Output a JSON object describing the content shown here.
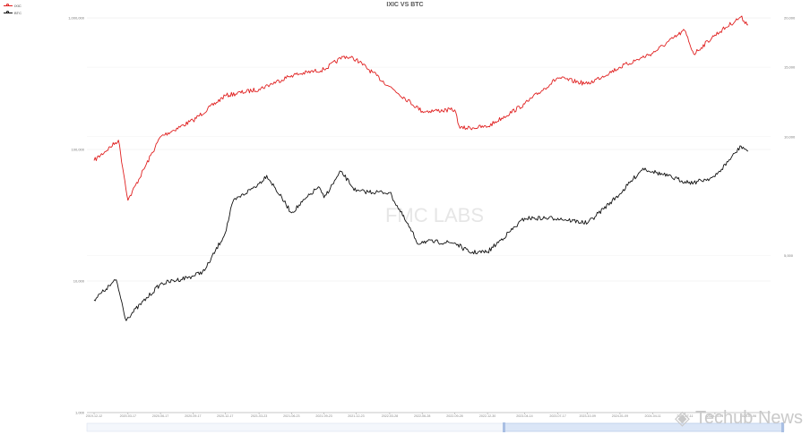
{
  "chart_data": {
    "type": "line",
    "title": "IXIC VS BTC",
    "legend_position": "top-left",
    "grid": true,
    "x_tick_labels": [
      "2019-12-12",
      "2020-03-17",
      "2020-06-17",
      "2020-09-17",
      "2020-12-17",
      "2021-03-23",
      "2021-06-23",
      "2021-09-23",
      "2021-12-23",
      "2022-03-28",
      "2022-06-28",
      "2022-09-28",
      "2022-12-30",
      "2023-04-14",
      "2023-07-17",
      "2023-10-09",
      "2024-01-09",
      "2024-04-11",
      "2024-07-11",
      "2024-10-04",
      "2025-01-06"
    ],
    "left_axis": {
      "scale": "log",
      "ylim": [
        1000,
        1000000
      ],
      "tick_labels": [
        "1,000",
        "10,000",
        "100,000",
        "1,000,000"
      ]
    },
    "right_axis": {
      "scale": "log",
      "ylim": [
        2000,
        20000
      ],
      "tick_labels": [
        "5,000",
        "10,000",
        "15,000",
        "20,000"
      ]
    },
    "series": [
      {
        "name": "IXIC",
        "color": "#e02020",
        "axis": "right",
        "x": [
          "2019-12-12",
          "2020-02-19",
          "2020-03-17",
          "2020-06-17",
          "2020-09-17",
          "2020-12-17",
          "2021-03-23",
          "2021-06-23",
          "2021-09-23",
          "2021-11-19",
          "2021-12-23",
          "2022-03-28",
          "2022-06-28",
          "2022-09-28",
          "2022-10-13",
          "2022-12-30",
          "2023-04-14",
          "2023-07-17",
          "2023-10-09",
          "2024-01-09",
          "2024-04-11",
          "2024-07-10",
          "2024-08-05",
          "2024-10-04",
          "2024-12-16",
          "2025-01-06"
        ],
        "values": [
          8700,
          9800,
          6900,
          10000,
          11000,
          12700,
          13200,
          14300,
          14800,
          16000,
          15700,
          13400,
          11600,
          11700,
          10500,
          10600,
          12100,
          14100,
          13600,
          15000,
          16300,
          18600,
          16200,
          18100,
          20100,
          19200
        ]
      },
      {
        "name": "BTC",
        "color": "#111111",
        "axis": "left",
        "x": [
          "2019-12-12",
          "2020-01-15",
          "2020-02-13",
          "2020-03-12",
          "2020-03-17",
          "2020-06-17",
          "2020-09-17",
          "2020-10-20",
          "2020-12-17",
          "2021-01-08",
          "2021-03-23",
          "2021-04-14",
          "2021-06-23",
          "2021-09-07",
          "2021-09-23",
          "2021-11-10",
          "2021-12-23",
          "2022-03-28",
          "2022-06-18",
          "2022-06-28",
          "2022-09-28",
          "2022-11-09",
          "2022-12-30",
          "2023-04-14",
          "2023-07-17",
          "2023-10-09",
          "2024-01-09",
          "2024-03-14",
          "2024-04-11",
          "2024-07-11",
          "2024-08-05",
          "2024-10-04",
          "2024-12-17",
          "2025-01-06"
        ],
        "values": [
          7200,
          8700,
          10200,
          5000,
          5300,
          9500,
          10900,
          12000,
          23000,
          40000,
          55000,
          63500,
          33000,
          52000,
          43000,
          68000,
          48000,
          47000,
          19000,
          20000,
          19500,
          16500,
          16600,
          30000,
          30000,
          27500,
          46000,
          72000,
          68000,
          57000,
          56000,
          62000,
          106000,
          97000
        ]
      }
    ]
  },
  "watermark": {
    "text": "Techub News"
  }
}
